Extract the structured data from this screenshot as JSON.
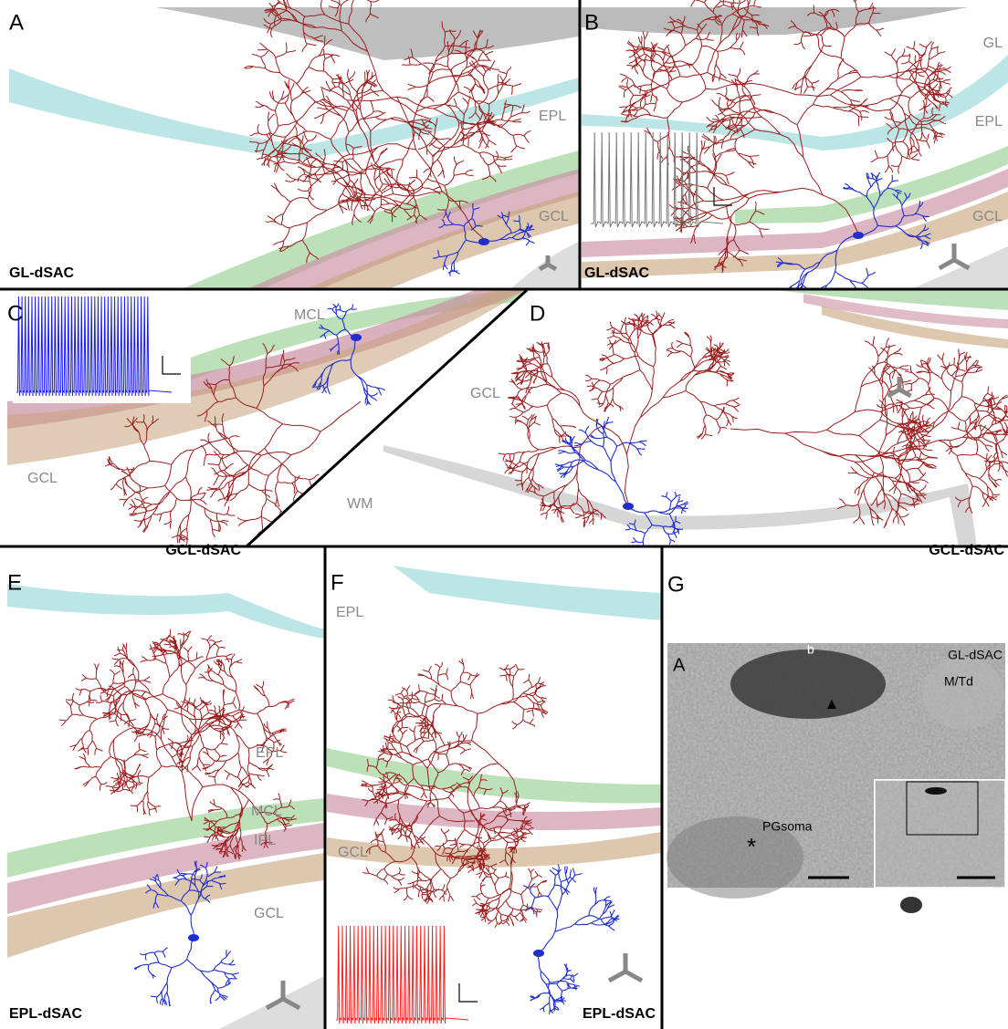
{
  "panels": [
    {
      "letter": "A",
      "cell": "GL-dSAC",
      "layers": [
        "EPL",
        "GCL"
      ]
    },
    {
      "letter": "B",
      "cell": "GL-dSAC",
      "layers": [
        "GL",
        "EPL",
        "GCL"
      ]
    },
    {
      "letter": "C",
      "cell": "GCL-dSAC",
      "layers": [
        "MCL",
        "GCL"
      ]
    },
    {
      "letter": "D",
      "cell": "GCL-dSAC",
      "layers": [
        "GCL",
        "WM"
      ]
    },
    {
      "letter": "E",
      "cell": "EPL-dSAC",
      "layers": [
        "EPL",
        "MCL",
        "IPL",
        "GCL"
      ]
    },
    {
      "letter": "F",
      "cell": "EPL-dSAC",
      "layers": [
        "EPL",
        "GCL"
      ]
    },
    {
      "letter": "G",
      "micrograph": {
        "inset_letter": "A",
        "cell": "GL-dSAC",
        "labels": [
          "M/Td",
          "b",
          "PGsoma",
          "*"
        ]
      }
    }
  ]
}
